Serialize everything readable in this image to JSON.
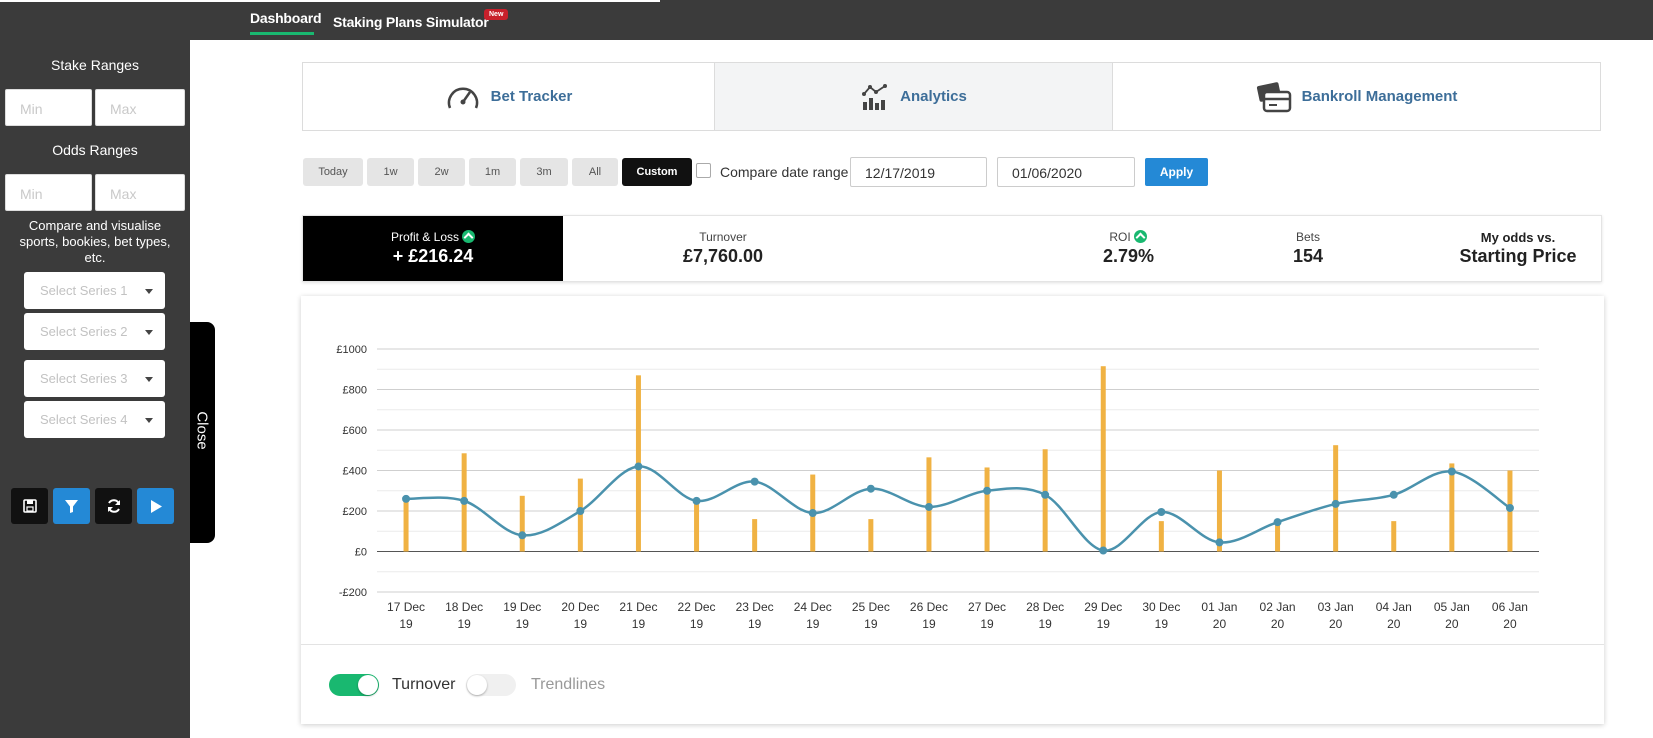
{
  "topnav": {
    "dashboard": "Dashboard",
    "staking": "Staking Plans Simulator",
    "new_badge": "New"
  },
  "sidebar": {
    "stake_title": "Stake Ranges",
    "stake_min": "Min",
    "stake_max": "Max",
    "odds_title": "Odds Ranges",
    "odds_min": "Min",
    "odds_max": "Max",
    "description": "Compare and visualise sports, bookies, bet types, etc.",
    "series": [
      "Select Series 1",
      "Select Series 2",
      "Select Series 3",
      "Select Series 4"
    ],
    "close": "Close",
    "tool_icons": [
      "save-icon",
      "filter-icon",
      "refresh-icon",
      "play-icon"
    ]
  },
  "tabs": [
    "Bet Tracker",
    "Analytics",
    "Bankroll Management"
  ],
  "date_ranges": [
    "Today",
    "1w",
    "2w",
    "1m",
    "3m",
    "All",
    "Custom"
  ],
  "active_range": "Custom",
  "compare_label": "Compare date range",
  "date_from": "12/17/2019",
  "date_to": "01/06/2020",
  "apply_label": "Apply",
  "stats": {
    "pl_label": "Profit & Loss",
    "pl_value": "+ £216.24",
    "turnover_label": "Turnover",
    "turnover_value": "£7,760.00",
    "roi_label": "ROI",
    "roi_value": "2.79%",
    "bets_label": "Bets",
    "bets_value": "154",
    "odds_label": "My odds vs.",
    "odds_value": "Starting Price"
  },
  "colors": {
    "accent_green": "#19b870",
    "line_color": "#4a92ad",
    "bar_color": "#f0b243",
    "link_blue": "#3d6e99",
    "apply_blue": "#2489d6"
  },
  "toggles": {
    "turnover_label": "Turnover",
    "turnover_on": true,
    "trendlines_label": "Trendlines",
    "trendlines_on": false
  },
  "chart_data": {
    "type": "line",
    "categories": [
      "17 Dec 19",
      "18 Dec 19",
      "19 Dec 19",
      "20 Dec 19",
      "21 Dec 19",
      "22 Dec 19",
      "23 Dec 19",
      "24 Dec 19",
      "25 Dec 19",
      "26 Dec 19",
      "27 Dec 19",
      "28 Dec 19",
      "29 Dec 19",
      "30 Dec 19",
      "01 Jan 20",
      "02 Jan 20",
      "03 Jan 20",
      "04 Jan 20",
      "05 Jan 20",
      "06 Jan 20"
    ],
    "tick_line1": [
      "17 Dec",
      "18 Dec",
      "19 Dec",
      "20 Dec",
      "21 Dec",
      "22 Dec",
      "23 Dec",
      "24 Dec",
      "25 Dec",
      "26 Dec",
      "27 Dec",
      "28 Dec",
      "29 Dec",
      "30 Dec",
      "01 Jan",
      "02 Jan",
      "03 Jan",
      "04 Jan",
      "05 Jan",
      "06 Jan"
    ],
    "tick_line2": [
      "19",
      "19",
      "19",
      "19",
      "19",
      "19",
      "19",
      "19",
      "19",
      "19",
      "19",
      "19",
      "19",
      "19",
      "20",
      "20",
      "20",
      "20",
      "20",
      "20"
    ],
    "series": [
      {
        "kind": "bar",
        "values": [
          250,
          485,
          275,
          360,
          870,
          250,
          160,
          380,
          160,
          465,
          415,
          505,
          915,
          150,
          400,
          140,
          525,
          150,
          435,
          400
        ]
      },
      {
        "kind": "line",
        "values": [
          260,
          250,
          80,
          200,
          420,
          250,
          345,
          190,
          310,
          220,
          300,
          280,
          5,
          195,
          45,
          145,
          235,
          280,
          395,
          215
        ]
      }
    ],
    "ylim": [
      -200,
      1000
    ],
    "yticks": [
      1000,
      800,
      600,
      400,
      200,
      0,
      -200
    ],
    "ytick_labels": [
      "£1000",
      "£800",
      "£600",
      "£400",
      "£200",
      "£0",
      "-£200"
    ],
    "grid": true
  }
}
